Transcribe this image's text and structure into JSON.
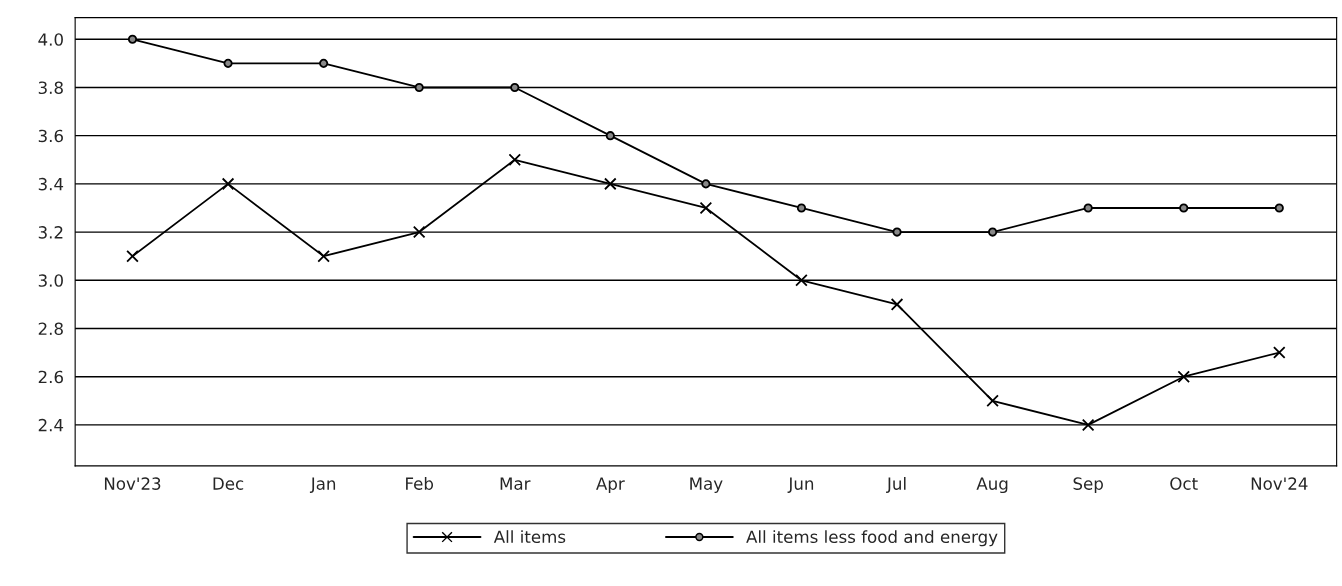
{
  "chart_data": {
    "type": "line",
    "categories": [
      "Nov'23",
      "Dec",
      "Jan",
      "Feb",
      "Mar",
      "Apr",
      "May",
      "Jun",
      "Jul",
      "Aug",
      "Sep",
      "Oct",
      "Nov'24"
    ],
    "series": [
      {
        "name": "All items",
        "color": "#000000",
        "marker": "cross",
        "values": [
          3.1,
          3.4,
          3.1,
          3.2,
          3.5,
          3.4,
          3.3,
          3.0,
          2.9,
          2.5,
          2.4,
          2.6,
          2.7
        ]
      },
      {
        "name": "All items less food and energy",
        "color": "#000000",
        "marker": "circle",
        "values": [
          4.0,
          3.9,
          3.9,
          3.8,
          3.8,
          3.6,
          3.4,
          3.3,
          3.2,
          3.2,
          3.3,
          3.3,
          3.3
        ]
      }
    ],
    "ylim": [
      2.23,
      4.09
    ],
    "yticks": [
      {
        "value": 2.4,
        "label": "2.4"
      },
      {
        "value": 2.6,
        "label": "2.6"
      },
      {
        "value": 2.8,
        "label": "2.8"
      },
      {
        "value": 3.0,
        "label": "3.0"
      },
      {
        "value": 3.2,
        "label": "3.2"
      },
      {
        "value": 3.4,
        "label": "3.4"
      },
      {
        "value": 3.6,
        "label": "3.6"
      },
      {
        "value": 3.8,
        "label": "3.8"
      },
      {
        "value": 4.0,
        "label": "4.0"
      }
    ],
    "grid": "y",
    "legend": "bottom",
    "line_style": "solid"
  }
}
